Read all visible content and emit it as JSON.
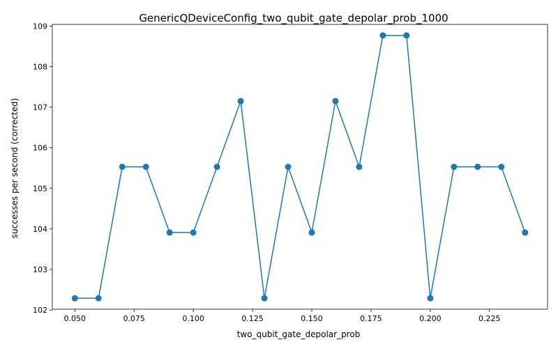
{
  "chart_data": {
    "type": "line",
    "title": "GenericQDeviceConfig_two_qubit_gate_depolar_prob_1000",
    "xlabel": "two_qubit_gate_depolar_prob",
    "ylabel": "successes per second (corrected)",
    "xlim": [
      0.0405,
      0.2495
    ],
    "ylim": [
      102.02,
      109.04
    ],
    "xticks": [
      0.05,
      0.075,
      0.1,
      0.125,
      0.15,
      0.175,
      0.2,
      0.225
    ],
    "xtick_labels": [
      "0.050",
      "0.075",
      "0.100",
      "0.125",
      "0.150",
      "0.175",
      "0.200",
      "0.225"
    ],
    "yticks": [
      102,
      103,
      104,
      105,
      106,
      107,
      108,
      109
    ],
    "ytick_labels": [
      "102",
      "103",
      "104",
      "105",
      "106",
      "107",
      "108",
      "109"
    ],
    "grid": false,
    "line_color": "#1f77b4",
    "series": [
      {
        "x": [
          0.05,
          0.06,
          0.07,
          0.08,
          0.09,
          0.1,
          0.11,
          0.12,
          0.13,
          0.14,
          0.15,
          0.16,
          0.17,
          0.18,
          0.19,
          0.2,
          0.21,
          0.22,
          0.23,
          0.24
        ],
        "y": [
          102.29,
          102.29,
          105.53,
          105.53,
          103.91,
          103.91,
          105.53,
          107.15,
          102.29,
          105.53,
          103.91,
          107.15,
          105.53,
          108.77,
          108.77,
          102.29,
          105.53,
          105.53,
          105.53,
          103.91
        ]
      }
    ]
  }
}
